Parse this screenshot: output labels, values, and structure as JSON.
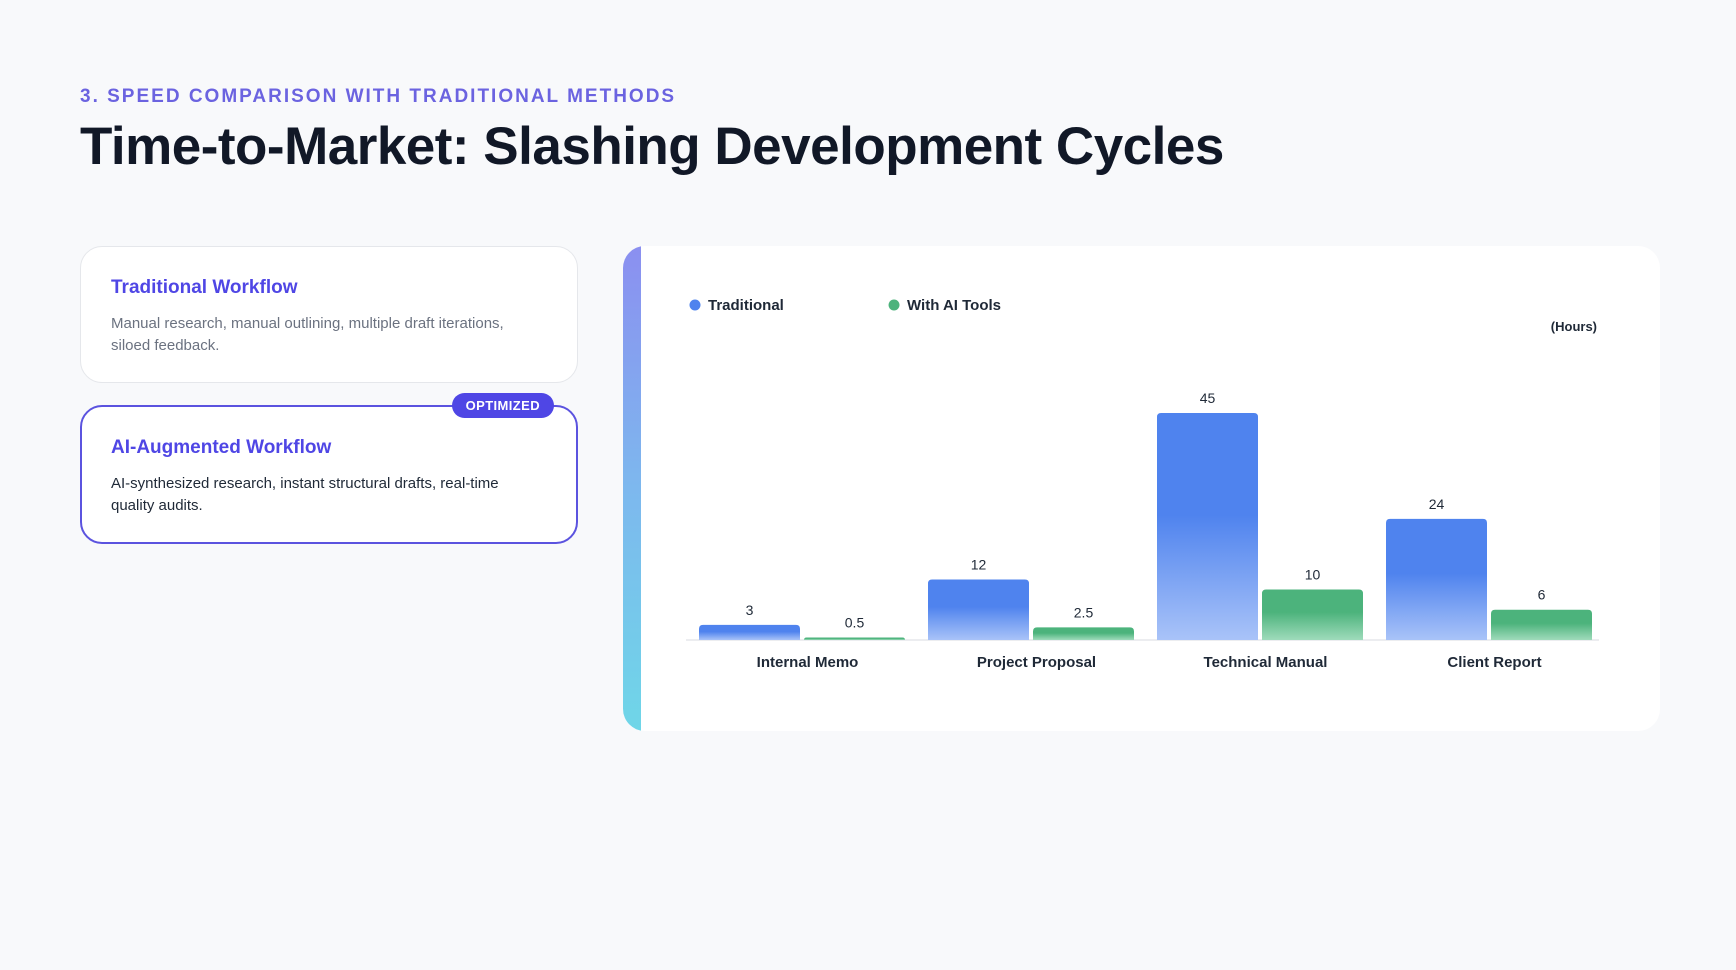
{
  "eyebrow": "3. Speed Comparison with Traditional Methods",
  "headline": "Time-to-Market: Slashing Development Cycles",
  "workflows": {
    "traditional": {
      "title": "Traditional Workflow",
      "description": "Manual research, manual outlining, multiple draft iterations, siloed feedback."
    },
    "ai": {
      "badge": "OPTIMIZED",
      "title": "AI-Augmented Workflow",
      "description": "AI-synthesized research, instant structural drafts, real-time quality audits."
    }
  },
  "colors": {
    "accent": "#4f46e5",
    "traditional": "#4f83ee",
    "ai": "#4cb37c"
  },
  "chart_data": {
    "type": "bar",
    "categories": [
      "Internal Memo",
      "Project Proposal",
      "Technical Manual",
      "Client Report"
    ],
    "series": [
      {
        "name": "Traditional",
        "values": [
          3,
          12,
          45,
          24
        ]
      },
      {
        "name": "With AI Tools",
        "values": [
          0.5,
          2.5,
          10,
          6
        ]
      }
    ],
    "unit_label": "(Hours)",
    "ylim": [
      0,
      45
    ],
    "legend_position": "top-left",
    "grid": false
  }
}
